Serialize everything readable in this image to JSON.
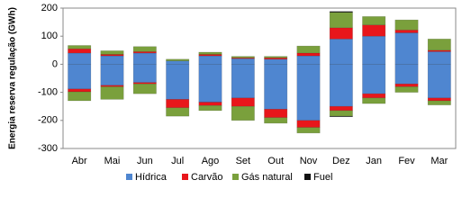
{
  "chart_data": {
    "type": "bar",
    "stacked": true,
    "y_label": "Energia reserva regulação (GWh)",
    "categories": [
      "Abr",
      "Mai",
      "Jun",
      "Jul",
      "Ago",
      "Set",
      "Out",
      "Nov",
      "Dez",
      "Jan",
      "Fev",
      "Mar"
    ],
    "series": [
      {
        "name": "Hídrica",
        "color": "#4f86d0",
        "values": [
          40,
          30,
          40,
          12,
          30,
          20,
          18,
          30,
          90,
          100,
          112,
          45
        ],
        "negative_values": [
          -88,
          -75,
          -65,
          -125,
          -135,
          -120,
          -160,
          -200,
          -150,
          -105,
          -70,
          -120
        ]
      },
      {
        "name": "Carvão",
        "color": "#e8161b",
        "values": [
          15,
          5,
          5,
          0,
          5,
          3,
          5,
          10,
          40,
          40,
          10,
          5
        ],
        "negative_values": [
          -10,
          -5,
          -5,
          -30,
          -12,
          -30,
          -30,
          -25,
          -15,
          -15,
          -10,
          -10
        ]
      },
      {
        "name": "Gás natural",
        "color": "#7aa03c",
        "values": [
          12,
          13,
          18,
          6,
          8,
          5,
          5,
          25,
          55,
          30,
          36,
          40
        ],
        "negative_values": [
          -32,
          -45,
          -35,
          -30,
          -18,
          -50,
          -20,
          -20,
          -20,
          -20,
          -20,
          -15
        ]
      },
      {
        "name": "Fuel",
        "color": "#111111",
        "values": [
          0,
          0,
          0,
          0,
          0,
          0,
          0,
          0,
          3,
          0,
          0,
          0
        ],
        "negative_values": [
          0,
          0,
          0,
          0,
          0,
          0,
          0,
          0,
          -2,
          0,
          0,
          0
        ]
      }
    ],
    "ylim": [
      -300,
      200
    ],
    "yticks": [
      -300,
      -200,
      -100,
      0,
      100,
      200
    ],
    "grid": false
  }
}
